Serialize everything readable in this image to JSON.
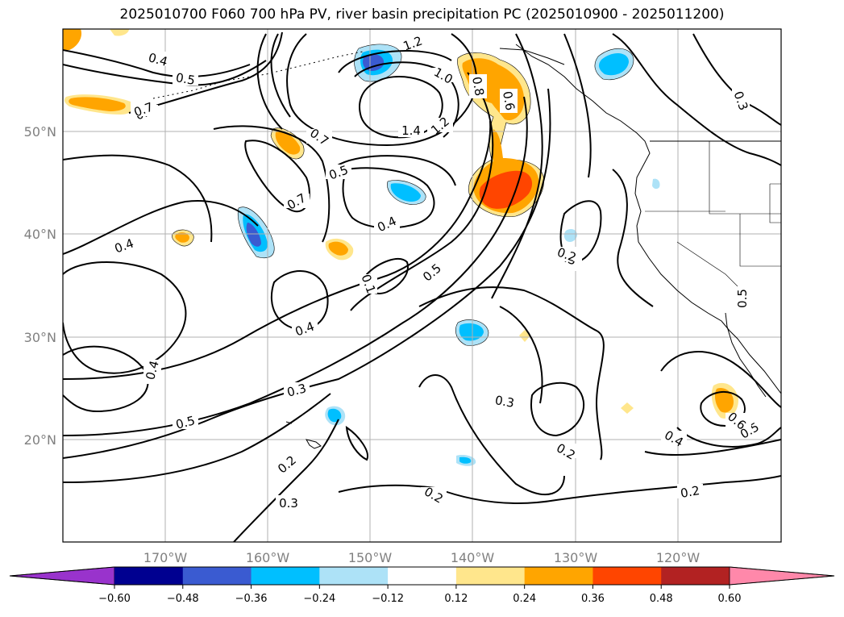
{
  "title": "2025010700 F060 700 hPa PV, river basin precipitation PC (2025010900 - 2025011200)",
  "lat_labels": [
    "50°N",
    "40°N",
    "30°N",
    "20°N"
  ],
  "lon_labels": [
    "170°W",
    "160°W",
    "150°W",
    "140°W",
    "130°W",
    "120°W"
  ],
  "colorbar": {
    "ticks": [
      "-0.60",
      "-0.48",
      "-0.36",
      "-0.24",
      "-0.12",
      "0.12",
      "0.24",
      "0.36",
      "0.48",
      "0.60"
    ],
    "colors": [
      "#9933cc",
      "#000090",
      "#3a5bd1",
      "#00bfff",
      "#ade2f7",
      "#ffffff",
      "#ffe68c",
      "#ffa500",
      "#ff4500",
      "#b22222",
      "#ff88aa"
    ]
  },
  "contour_labels": [
    "0.4",
    "0.5",
    "0.7",
    "1.2",
    "1.0",
    "0.8",
    "0.6",
    "1.4",
    "1.2",
    "0.7",
    "0.5",
    "0.7",
    "0.4",
    "0.4",
    "0.5",
    "0.1",
    "0.4",
    "0.4",
    "0.3",
    "0.3",
    "0.5",
    "0.2",
    "0.3",
    "0.2",
    "0.2",
    "0.3",
    "0.2",
    "0.2",
    "0.4",
    "0.5",
    "0.6",
    "0.3",
    "0.5",
    "0.7"
  ]
}
